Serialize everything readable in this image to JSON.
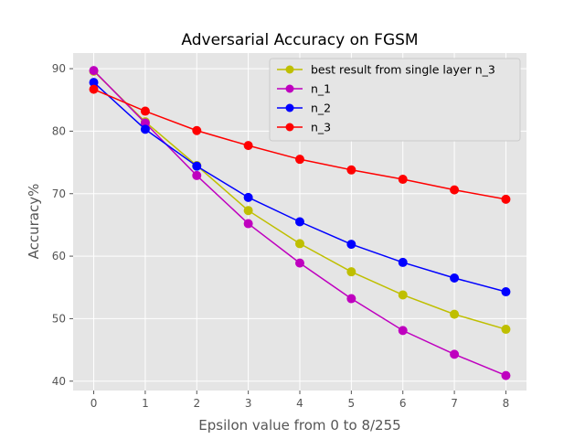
{
  "chart_data": {
    "type": "line",
    "title": "Adversarial Accuracy on FGSM",
    "xlabel": "Epsilon value from 0 to 8/255",
    "ylabel": "Accuracy%",
    "x": [
      0,
      1,
      2,
      3,
      4,
      5,
      6,
      7,
      8
    ],
    "xticks": [
      "0",
      "1",
      "2",
      "3",
      "4",
      "5",
      "6",
      "7",
      "8"
    ],
    "yticks": [
      "40",
      "50",
      "60",
      "70",
      "80",
      "90"
    ],
    "xlim": [
      -0.4,
      8.4
    ],
    "ylim": [
      38.5,
      92.5
    ],
    "grid": true,
    "legend_position": "top-right",
    "series": [
      {
        "name": "best result from single layer n_3",
        "color": "#bfbf00",
        "values": [
          89.6,
          81.5,
          74.5,
          67.3,
          62.0,
          57.5,
          53.8,
          50.7,
          48.3
        ]
      },
      {
        "name": "n_1",
        "color": "#bf00bf",
        "values": [
          89.7,
          81.3,
          72.9,
          65.2,
          58.9,
          53.2,
          48.1,
          44.3,
          40.9
        ]
      },
      {
        "name": "n_2",
        "color": "#0000ff",
        "values": [
          87.8,
          80.3,
          74.4,
          69.4,
          65.5,
          61.9,
          59.0,
          56.5,
          54.3
        ]
      },
      {
        "name": "n_3",
        "color": "#ff0000",
        "values": [
          86.7,
          83.2,
          80.1,
          77.7,
          75.5,
          73.8,
          72.3,
          70.6,
          69.1
        ]
      }
    ]
  }
}
